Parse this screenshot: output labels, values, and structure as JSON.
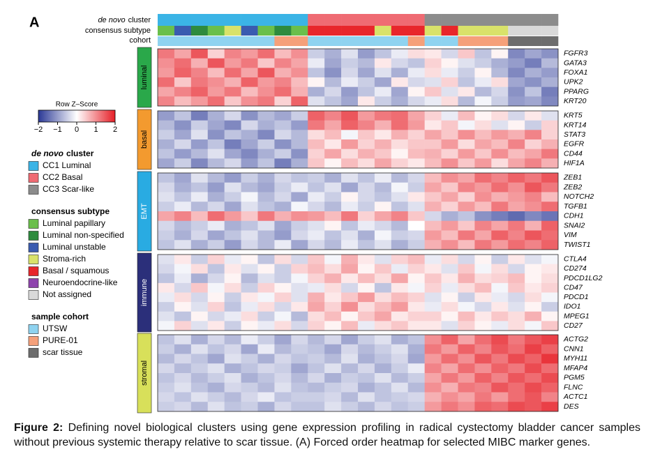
{
  "panel_label": "A",
  "annotation_labels": {
    "cluster": {
      "em": "de novo",
      "text": "cluster"
    },
    "subtype": "consensus subtype",
    "cohort": "cohort"
  },
  "colorbar": {
    "title": "Row Z–Score",
    "lim": [
      -2,
      2
    ],
    "ticks": [
      {
        "value": -2,
        "label": "−2"
      },
      {
        "value": -1,
        "label": "−1"
      },
      0,
      1,
      2
    ],
    "colors": [
      "#2b3996",
      "#ffffff",
      "#e61e26"
    ]
  },
  "legend": {
    "cluster": {
      "title": {
        "em": "de novo",
        "text": "cluster"
      },
      "items": [
        {
          "label": "CC1 Luminal",
          "color": "#3bb4e6"
        },
        {
          "label": "CC2 Basal",
          "color": "#ef6b73"
        },
        {
          "label": "CC3 Scar-like",
          "color": "#8c8c8c"
        }
      ]
    },
    "subtype": {
      "title": "consensus subtype",
      "items": [
        {
          "label": "Luminal papillary",
          "color": "#6abf4b"
        },
        {
          "label": "Luminal non-specified",
          "color": "#2e8b3e"
        },
        {
          "label": "Luminal unstable",
          "color": "#3a5bb0"
        },
        {
          "label": "Stroma-rich",
          "color": "#d9e26a"
        },
        {
          "label": "Basal / squamous",
          "color": "#e8262b"
        },
        {
          "label": "Neuroendocrine-like",
          "color": "#8e44ad"
        },
        {
          "label": "Not assigned",
          "color": "#d9d9d9"
        }
      ]
    },
    "cohort": {
      "title": "sample cohort",
      "items": [
        {
          "label": "UTSW",
          "color": "#8fd3f0"
        },
        {
          "label": "PURE-01",
          "color": "#f5a07a"
        },
        {
          "label": "scar tissue",
          "color": "#6d6d6d"
        }
      ]
    }
  },
  "columns": {
    "cluster": [
      "CC1 Luminal",
      "CC1 Luminal",
      "CC1 Luminal",
      "CC1 Luminal",
      "CC1 Luminal",
      "CC1 Luminal",
      "CC1 Luminal",
      "CC1 Luminal",
      "CC1 Luminal",
      "CC2 Basal",
      "CC2 Basal",
      "CC2 Basal",
      "CC2 Basal",
      "CC2 Basal",
      "CC2 Basal",
      "CC2 Basal",
      "CC3 Scar-like",
      "CC3 Scar-like",
      "CC3 Scar-like",
      "CC3 Scar-like",
      "CC3 Scar-like",
      "CC3 Scar-like",
      "CC3 Scar-like",
      "CC3 Scar-like"
    ],
    "subtype": [
      "Luminal papillary",
      "Luminal unstable",
      "Luminal non-specified",
      "Luminal papillary",
      "Stroma-rich",
      "Luminal unstable",
      "Luminal papillary",
      "Luminal non-specified",
      "Luminal papillary",
      "Basal / squamous",
      "Basal / squamous",
      "Basal / squamous",
      "Basal / squamous",
      "Stroma-rich",
      "Basal / squamous",
      "Basal / squamous",
      "Stroma-rich",
      "Basal / squamous",
      "Stroma-rich",
      "Stroma-rich",
      "Stroma-rich",
      "Not assigned",
      "Not assigned",
      "Not assigned"
    ],
    "cohort": [
      "UTSW",
      "UTSW",
      "UTSW",
      "UTSW",
      "UTSW",
      "UTSW",
      "UTSW",
      "PURE-01",
      "PURE-01",
      "UTSW",
      "UTSW",
      "UTSW",
      "UTSW",
      "UTSW",
      "UTSW",
      "PURE-01",
      "UTSW",
      "UTSW",
      "PURE-01",
      "PURE-01",
      "PURE-01",
      "scar tissue",
      "scar tissue",
      "scar tissue"
    ]
  },
  "blocks": [
    {
      "name": "luminal",
      "color": "#2aa84a",
      "text_color": "#000000",
      "genes": [
        "FGFR3",
        "GATA3",
        "FOXA1",
        "UPK2",
        "PPARG",
        "KRT20"
      ],
      "values": [
        [
          1.2,
          0.8,
          1.5,
          0.4,
          1.1,
          0.9,
          1.3,
          0.6,
          1.0,
          -0.5,
          -0.8,
          -0.3,
          -1.0,
          -0.6,
          -0.2,
          0.3,
          0.2,
          -0.4,
          0.5,
          -0.6,
          0.1,
          -1.2,
          -0.9,
          -1.1
        ],
        [
          1.0,
          1.3,
          0.7,
          1.5,
          0.9,
          1.2,
          0.5,
          1.1,
          0.8,
          -0.2,
          -0.9,
          -0.5,
          -0.7,
          0.2,
          -0.4,
          -0.6,
          0.4,
          0.1,
          -0.3,
          -0.5,
          -0.8,
          -1.0,
          -1.3,
          -0.7
        ],
        [
          0.9,
          1.4,
          1.1,
          0.6,
          1.3,
          0.8,
          1.5,
          0.7,
          1.0,
          -0.6,
          -1.1,
          -0.4,
          -0.9,
          -0.3,
          -0.8,
          -0.2,
          0.3,
          -0.2,
          -0.5,
          0.1,
          -0.7,
          -1.2,
          -0.8,
          -1.0
        ],
        [
          1.3,
          0.5,
          1.2,
          1.0,
          0.7,
          1.4,
          0.9,
          1.1,
          0.6,
          0.1,
          -0.7,
          -0.2,
          -0.5,
          -0.9,
          0.2,
          -0.4,
          -0.3,
          0.4,
          -0.6,
          -0.2,
          0.3,
          -0.9,
          -1.1,
          -0.8
        ],
        [
          0.8,
          1.1,
          1.4,
          0.9,
          1.2,
          0.6,
          1.0,
          1.3,
          0.7,
          -0.8,
          -0.4,
          -1.0,
          -0.6,
          -0.2,
          -0.9,
          0.1,
          0.5,
          -0.3,
          0.2,
          -0.7,
          -0.4,
          -1.1,
          -0.6,
          -1.3
        ],
        [
          1.1,
          0.6,
          0.9,
          1.3,
          0.5,
          1.0,
          1.2,
          0.4,
          1.4,
          -0.3,
          -0.6,
          -0.9,
          0.2,
          -0.5,
          -0.8,
          -0.4,
          -0.2,
          0.3,
          -0.7,
          -0.1,
          -0.5,
          -1.0,
          -0.9,
          -1.2
        ]
      ]
    },
    {
      "name": "basal",
      "color": "#f39a2f",
      "text_color": "#000000",
      "genes": [
        "KRT5",
        "KRT14",
        "STAT3",
        "EGFR",
        "CD44",
        "HIF1A"
      ],
      "values": [
        [
          -1.0,
          -0.6,
          -1.3,
          -0.8,
          -0.4,
          -1.1,
          -0.7,
          -0.9,
          -0.5,
          1.4,
          1.1,
          1.5,
          0.9,
          1.2,
          1.3,
          0.8,
          0.4,
          -0.2,
          0.6,
          0.1,
          0.3,
          -0.4,
          0.2,
          -0.3
        ],
        [
          -0.7,
          -1.1,
          -0.5,
          -0.9,
          -1.2,
          -0.4,
          -0.8,
          -0.6,
          -1.0,
          1.2,
          0.8,
          1.4,
          1.1,
          0.7,
          1.3,
          0.9,
          0.2,
          0.5,
          -0.1,
          0.3,
          -0.3,
          0.1,
          -0.5,
          0.4
        ],
        [
          -0.5,
          -0.9,
          -0.3,
          -1.1,
          -0.6,
          -0.8,
          -1.2,
          -0.4,
          -0.7,
          0.3,
          0.6,
          -0.1,
          0.5,
          0.2,
          0.7,
          0.4,
          0.8,
          0.5,
          1.0,
          0.6,
          0.9,
          0.7,
          1.1,
          0.4
        ],
        [
          -0.8,
          -0.4,
          -1.0,
          -0.6,
          -1.3,
          -0.9,
          -0.5,
          -1.1,
          -0.7,
          0.6,
          0.2,
          0.9,
          0.4,
          0.7,
          0.3,
          0.5,
          0.5,
          0.9,
          0.3,
          0.8,
          0.6,
          1.1,
          0.4,
          0.7
        ],
        [
          -0.6,
          -1.0,
          -0.7,
          -0.3,
          -0.9,
          -1.2,
          -0.8,
          -0.5,
          -1.1,
          0.4,
          0.8,
          0.3,
          0.7,
          0.5,
          0.1,
          0.6,
          0.7,
          0.4,
          0.9,
          0.5,
          1.0,
          0.6,
          0.8,
          1.2
        ],
        [
          -0.9,
          -0.5,
          -1.2,
          -0.7,
          -0.4,
          -1.0,
          -0.6,
          -1.3,
          -0.8,
          0.5,
          0.1,
          0.6,
          0.3,
          0.8,
          0.4,
          0.2,
          0.6,
          1.0,
          0.5,
          0.9,
          0.3,
          0.8,
          1.1,
          0.7
        ]
      ]
    },
    {
      "name": "EMT",
      "color": "#29abe2",
      "text_color": "#ffffff",
      "genes": [
        "ZEB1",
        "ZEB2",
        "NOTCH2",
        "TGFB1",
        "CDH1",
        "SNAI2",
        "VIM",
        "TWIST1"
      ],
      "values": [
        [
          -0.6,
          -0.9,
          -0.3,
          -0.7,
          -1.0,
          -0.5,
          -0.8,
          -0.4,
          -0.6,
          -0.5,
          -0.8,
          -0.3,
          -0.6,
          -0.2,
          -0.7,
          -0.4,
          0.6,
          1.0,
          0.8,
          1.3,
          1.1,
          1.4,
          1.2,
          1.5
        ],
        [
          -0.4,
          -0.8,
          -0.6,
          -1.0,
          -0.3,
          -0.7,
          -0.9,
          -0.5,
          -0.2,
          -0.6,
          -0.3,
          -0.9,
          -0.4,
          -0.7,
          -0.1,
          -0.5,
          0.8,
          0.5,
          1.1,
          0.9,
          1.3,
          1.0,
          1.5,
          1.2
        ],
        [
          -0.3,
          -0.6,
          -0.2,
          -0.8,
          -0.5,
          -0.1,
          -0.7,
          -0.4,
          -0.9,
          -0.2,
          -0.5,
          0.1,
          -0.4,
          -0.6,
          -0.3,
          0.2,
          0.5,
          0.8,
          0.4,
          1.0,
          0.7,
          0.9,
          1.1,
          0.6
        ],
        [
          -0.5,
          -0.2,
          -0.7,
          -0.4,
          -0.9,
          -0.3,
          -0.6,
          -0.8,
          -0.1,
          -0.4,
          -0.7,
          -0.2,
          -0.5,
          0.1,
          -0.6,
          -0.3,
          0.7,
          0.4,
          0.9,
          0.6,
          1.2,
          0.8,
          1.0,
          1.3
        ],
        [
          0.8,
          1.1,
          0.6,
          1.3,
          0.9,
          0.5,
          1.2,
          0.7,
          1.0,
          0.9,
          0.6,
          1.2,
          0.4,
          0.8,
          1.1,
          0.5,
          -0.4,
          -0.8,
          -0.6,
          -1.1,
          -1.3,
          -1.5,
          -1.2,
          -1.4
        ],
        [
          -0.4,
          -0.7,
          -0.5,
          -0.2,
          -0.8,
          -0.6,
          -0.3,
          -0.9,
          -0.5,
          -0.3,
          0.1,
          -0.6,
          -0.2,
          -0.4,
          -0.7,
          0.0,
          0.6,
          0.9,
          0.5,
          1.1,
          0.8,
          1.2,
          0.7,
          1.4
        ],
        [
          -0.5,
          -0.8,
          -0.4,
          -0.9,
          -0.6,
          -0.3,
          -0.7,
          -1.0,
          -0.4,
          -0.2,
          -0.6,
          -0.3,
          -0.8,
          -0.1,
          -0.5,
          -0.4,
          0.9,
          0.6,
          1.2,
          0.8,
          1.4,
          1.1,
          1.5,
          1.3
        ],
        [
          -0.6,
          -0.3,
          -0.8,
          -0.5,
          -1.0,
          -0.4,
          -0.7,
          -0.2,
          -0.9,
          -0.4,
          -0.7,
          -0.2,
          -0.6,
          -0.3,
          -0.8,
          -0.5,
          0.7,
          1.0,
          0.6,
          1.2,
          0.9,
          1.3,
          1.1,
          1.4
        ]
      ]
    },
    {
      "name": "immune",
      "color": "#2b2f7a",
      "text_color": "#ffffff",
      "genes": [
        "CTLA4",
        "CD274",
        "PDCD1LG2",
        "CD47",
        "PDCD1",
        "IDO1",
        "MPEG1",
        "CD27"
      ],
      "values": [
        [
          -0.3,
          0.2,
          -0.5,
          0.4,
          -0.2,
          0.1,
          -0.6,
          0.3,
          -0.4,
          0.5,
          -0.1,
          0.7,
          0.2,
          -0.3,
          0.4,
          0.6,
          -0.2,
          0.3,
          -0.4,
          0.1,
          -0.5,
          0.2,
          -0.3,
          -0.1
        ],
        [
          -0.4,
          -0.1,
          0.3,
          -0.6,
          0.2,
          -0.3,
          0.1,
          -0.5,
          0.4,
          0.6,
          0.3,
          0.8,
          0.1,
          0.5,
          -0.2,
          0.4,
          0.2,
          -0.3,
          0.5,
          -0.1,
          0.3,
          -0.4,
          0.1,
          0.2
        ],
        [
          -0.6,
          -0.2,
          -0.8,
          -0.4,
          0.1,
          -0.7,
          -0.3,
          -0.5,
          -0.1,
          0.4,
          0.7,
          0.2,
          0.6,
          0.3,
          0.8,
          0.1,
          0.5,
          0.2,
          0.7,
          0.3,
          0.4,
          0.6,
          0.1,
          0.3
        ],
        [
          0.2,
          -0.4,
          0.5,
          -0.1,
          0.3,
          -0.5,
          0.4,
          0.1,
          -0.3,
          -0.2,
          0.3,
          -0.4,
          0.1,
          -0.6,
          0.2,
          -0.1,
          0.4,
          -0.2,
          0.3,
          0.6,
          -0.1,
          0.5,
          0.2,
          0.4
        ],
        [
          -0.2,
          0.3,
          -0.4,
          0.1,
          -0.5,
          0.2,
          -0.1,
          0.4,
          -0.3,
          0.7,
          0.2,
          0.5,
          0.9,
          0.3,
          0.6,
          0.4,
          -0.3,
          0.1,
          -0.5,
          0.2,
          -0.2,
          -0.4,
          0.3,
          -0.1
        ],
        [
          -0.5,
          0.1,
          -0.3,
          0.4,
          -0.6,
          -0.2,
          0.3,
          -0.4,
          0.2,
          0.8,
          0.4,
          1.0,
          0.3,
          0.6,
          0.9,
          0.2,
          -0.2,
          0.3,
          -0.1,
          -0.4,
          0.2,
          -0.3,
          0.1,
          -0.5
        ],
        [
          -0.3,
          -0.6,
          0.1,
          -0.4,
          -0.2,
          0.3,
          -0.5,
          -0.1,
          -0.7,
          0.3,
          0.6,
          0.1,
          0.5,
          0.8,
          0.2,
          0.4,
          0.4,
          0.1,
          0.6,
          0.2,
          0.5,
          0.3,
          0.7,
          0.1
        ],
        [
          -0.1,
          0.4,
          -0.3,
          0.2,
          -0.5,
          0.1,
          -0.2,
          0.3,
          -0.4,
          0.4,
          0.1,
          0.6,
          -0.2,
          0.3,
          0.5,
          0.2,
          0.2,
          -0.3,
          0.4,
          0.1,
          -0.2,
          0.3,
          -0.1,
          0.5
        ]
      ]
    },
    {
      "name": "stromal",
      "color": "#d8e05a",
      "text_color": "#000000",
      "genes": [
        "ACTG2",
        "CNN1",
        "MYH11",
        "MFAP4",
        "PGM5",
        "FLNC",
        "ACTC1",
        "DES"
      ],
      "values": [
        [
          -0.6,
          -0.3,
          -0.8,
          -0.4,
          -0.7,
          -0.2,
          -0.5,
          -0.9,
          -0.4,
          -0.7,
          -0.4,
          -0.9,
          -0.5,
          -0.3,
          -0.8,
          -0.6,
          1.0,
          1.4,
          0.8,
          1.3,
          1.6,
          1.2,
          1.5,
          1.7
        ],
        [
          -0.5,
          -0.8,
          -0.3,
          -0.6,
          -0.4,
          -0.9,
          -0.2,
          -0.7,
          -0.5,
          -0.6,
          -0.9,
          -0.4,
          -0.7,
          -0.5,
          -0.3,
          -0.8,
          1.2,
          0.9,
          1.4,
          1.1,
          1.5,
          1.3,
          1.7,
          1.4
        ],
        [
          -0.7,
          -0.4,
          -0.6,
          -0.9,
          -0.3,
          -0.5,
          -0.8,
          -0.4,
          -0.6,
          -0.5,
          -0.7,
          -0.3,
          -0.8,
          -0.6,
          -0.4,
          -0.9,
          0.9,
          1.3,
          1.0,
          1.5,
          1.2,
          1.6,
          1.4,
          1.8
        ],
        [
          -0.4,
          -0.7,
          -0.5,
          -0.3,
          -0.8,
          -0.6,
          -0.4,
          -0.5,
          -0.9,
          -0.6,
          -0.3,
          -0.7,
          -0.4,
          -0.8,
          -0.5,
          -0.2,
          1.1,
          0.8,
          1.3,
          1.0,
          1.4,
          1.2,
          1.6,
          1.3
        ],
        [
          -0.6,
          -0.4,
          -0.7,
          -0.5,
          -0.3,
          -0.8,
          -0.6,
          -0.4,
          -0.7,
          -0.4,
          -0.8,
          -0.5,
          -0.6,
          -0.3,
          -0.7,
          -0.5,
          0.8,
          1.2,
          0.9,
          1.4,
          1.1,
          1.5,
          1.3,
          1.6
        ],
        [
          -0.5,
          -0.3,
          -0.6,
          -0.8,
          -0.4,
          -0.5,
          -0.7,
          -0.3,
          -0.6,
          -0.7,
          -0.5,
          -0.4,
          -0.8,
          -0.6,
          -0.3,
          -0.7,
          1.0,
          0.7,
          1.2,
          1.1,
          1.5,
          1.3,
          1.6,
          1.4
        ],
        [
          -0.4,
          -0.6,
          -0.3,
          -0.5,
          -0.7,
          -0.4,
          -0.2,
          -0.6,
          -0.5,
          -0.5,
          -0.4,
          -0.7,
          -0.3,
          -0.6,
          -0.5,
          -0.4,
          0.7,
          1.0,
          0.8,
          1.2,
          0.9,
          1.3,
          1.5,
          1.1
        ],
        [
          -0.5,
          -0.4,
          -0.7,
          -0.3,
          -0.6,
          -0.5,
          -0.8,
          -0.4,
          -0.6,
          -0.6,
          -0.3,
          -0.5,
          -0.7,
          -0.4,
          -0.6,
          -0.5,
          0.9,
          1.2,
          1.0,
          1.4,
          1.3,
          1.6,
          1.5,
          1.7
        ]
      ]
    }
  ],
  "caption": {
    "lead": "Figure 2:",
    "text": "Defining novel biological clusters using gene expression profiling in radical cystectomy bladder cancer samples without previous systemic therapy relative to scar tissue. (A) Forced order heatmap for selected MIBC marker genes."
  }
}
